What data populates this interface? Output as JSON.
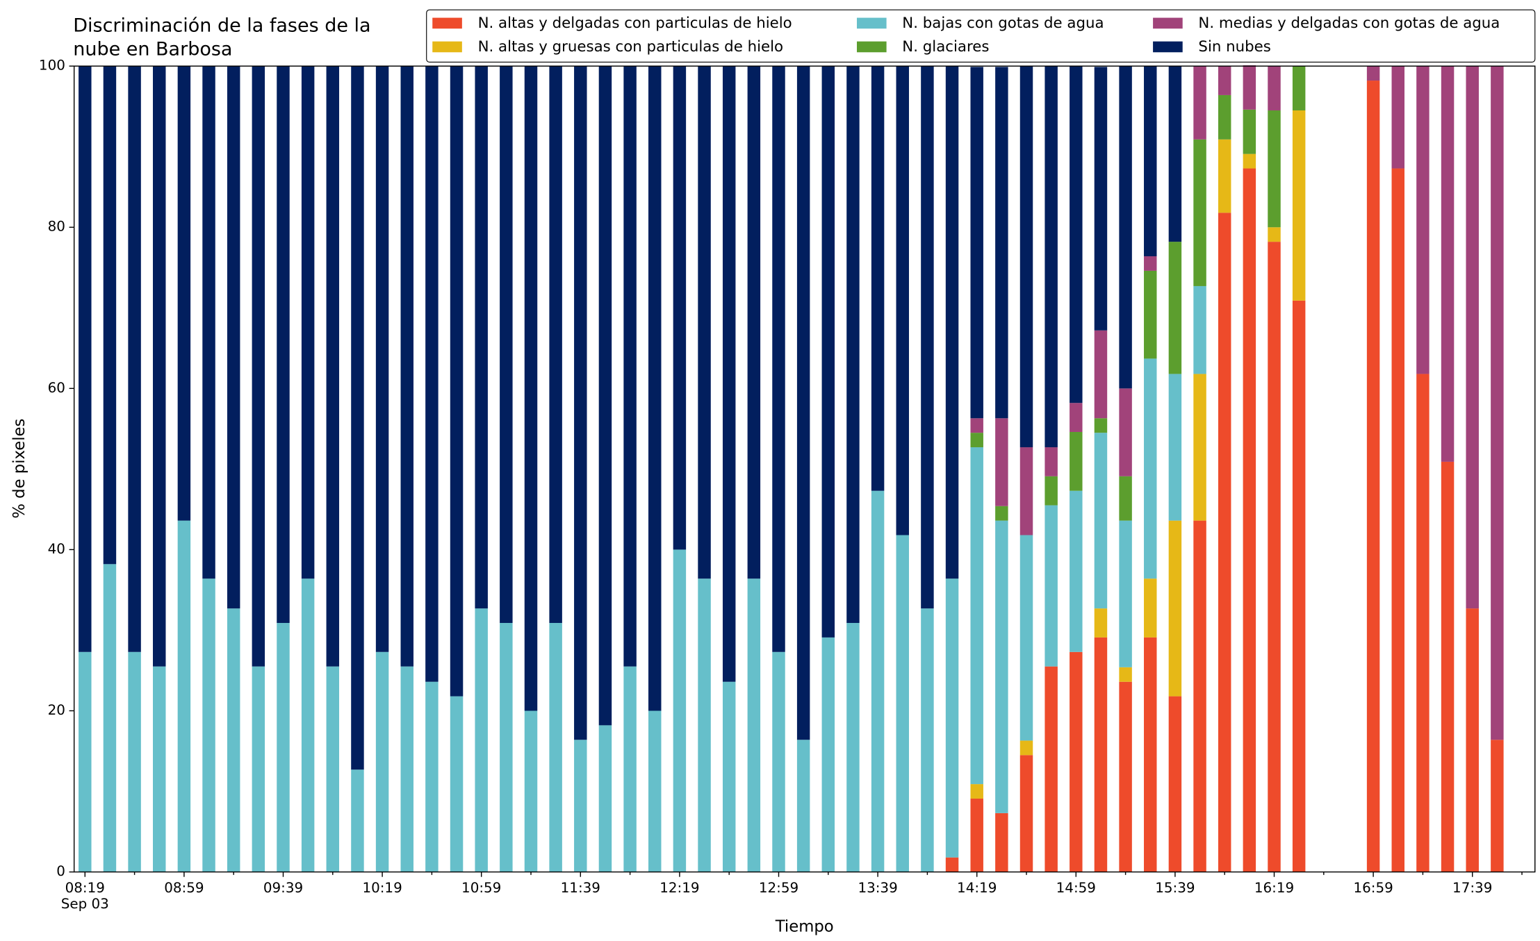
{
  "chart_data": {
    "type": "stacked_bar",
    "title": "Discriminación de la fases de la\nnube en Barbosa",
    "xlabel": "Tiempo",
    "ylabel": "% de pixeles",
    "categories": [
      "08:19",
      "08:29",
      "08:39",
      "08:49",
      "08:59",
      "09:09",
      "09:19",
      "09:29",
      "09:39",
      "09:49",
      "09:59",
      "10:09",
      "10:19",
      "10:29",
      "10:39",
      "10:49",
      "10:59",
      "11:09",
      "11:19",
      "11:29",
      "11:39",
      "11:49",
      "11:59",
      "12:09",
      "12:19",
      "12:29",
      "12:39",
      "12:49",
      "12:59",
      "13:09",
      "13:19",
      "13:29",
      "13:39",
      "13:49",
      "13:59",
      "14:09",
      "14:19",
      "14:29",
      "14:39",
      "14:49",
      "14:59",
      "15:09",
      "15:19",
      "15:29",
      "15:39",
      "15:49",
      "15:59",
      "16:09",
      "16:19",
      "16:29",
      "16:39",
      "16:49",
      "16:59",
      "17:09",
      "17:19",
      "17:29",
      "17:39",
      "17:49"
    ],
    "x_date": "Sep 03",
    "xticks": [
      "08:19",
      "08:59",
      "09:39",
      "10:19",
      "10:59",
      "11:39",
      "12:19",
      "12:59",
      "13:39",
      "14:19",
      "14:59",
      "15:39",
      "16:19",
      "16:59",
      "17:39"
    ],
    "xminorticks": [
      "08:39",
      "09:19",
      "09:59",
      "10:39",
      "11:19",
      "11:59",
      "12:39",
      "13:19",
      "13:59",
      "14:39",
      "15:19",
      "15:59",
      "16:39",
      "17:19",
      "17:59"
    ],
    "ylim": [
      0,
      100
    ],
    "yticks": [
      0,
      20,
      40,
      60,
      80,
      100
    ],
    "grid": false,
    "legend": "top",
    "series": [
      {
        "name": "N. altas y delgadas con particulas de hielo",
        "color": "#ee4b2b",
        "values": [
          0,
          0,
          0,
          0,
          0,
          0,
          0,
          0,
          0,
          0,
          0,
          0,
          0,
          0,
          0,
          0,
          0,
          0,
          0,
          0,
          0,
          0,
          0,
          0,
          0,
          0,
          0,
          0,
          0,
          0,
          0,
          0,
          0,
          0,
          0,
          1.8,
          9.1,
          7.3,
          14.5,
          25.5,
          27.3,
          29.1,
          23.6,
          29.1,
          21.8,
          43.6,
          81.8,
          87.3,
          78.2,
          70.9,
          null,
          null,
          98.2,
          87.3,
          61.8,
          50.9,
          32.7,
          16.4
        ]
      },
      {
        "name": "N. altas y gruesas con particulas de hielo",
        "color": "#e6b817",
        "values": [
          0,
          0,
          0,
          0,
          0,
          0,
          0,
          0,
          0,
          0,
          0,
          0,
          0,
          0,
          0,
          0,
          0,
          0,
          0,
          0,
          0,
          0,
          0,
          0,
          0,
          0,
          0,
          0,
          0,
          0,
          0,
          0,
          0,
          0,
          0,
          0,
          1.8,
          0,
          1.8,
          0,
          0,
          3.6,
          1.8,
          7.3,
          21.8,
          18.2,
          9.1,
          1.8,
          1.8,
          23.6,
          null,
          null,
          0,
          0,
          0,
          0,
          0,
          0
        ]
      },
      {
        "name": "N. bajas con gotas de agua",
        "color": "#66bfca",
        "values": [
          27.3,
          38.2,
          27.3,
          25.5,
          43.6,
          36.4,
          32.7,
          25.5,
          30.9,
          36.4,
          25.5,
          12.7,
          27.3,
          25.5,
          23.6,
          21.8,
          32.7,
          30.9,
          20.0,
          30.9,
          16.4,
          18.2,
          25.5,
          20.0,
          40.0,
          36.4,
          23.6,
          36.4,
          27.3,
          16.4,
          29.1,
          30.9,
          47.3,
          41.8,
          32.7,
          34.6,
          41.8,
          36.3,
          25.5,
          20.0,
          20.0,
          21.8,
          18.2,
          27.3,
          18.2,
          10.9,
          0,
          0,
          0,
          0,
          null,
          null,
          0,
          0,
          0,
          0,
          0,
          0
        ]
      },
      {
        "name": "N. glaciares",
        "color": "#5c9e2e",
        "values": [
          0,
          0,
          0,
          0,
          0,
          0,
          0,
          0,
          0,
          0,
          0,
          0,
          0,
          0,
          0,
          0,
          0,
          0,
          0,
          0,
          0,
          0,
          0,
          0,
          0,
          0,
          0,
          0,
          0,
          0,
          0,
          0,
          0,
          0,
          0,
          0,
          1.8,
          1.8,
          0,
          3.6,
          7.3,
          1.8,
          5.5,
          10.9,
          16.4,
          18.2,
          5.5,
          5.5,
          14.5,
          5.5,
          null,
          null,
          0,
          0,
          0,
          0,
          0,
          0
        ]
      },
      {
        "name": "N. medias y delgadas con gotas de agua",
        "color": "#a1437a",
        "values": [
          0,
          0,
          0,
          0,
          0,
          0,
          0,
          0,
          0,
          0,
          0,
          0,
          0,
          0,
          0,
          0,
          0,
          0,
          0,
          0,
          0,
          0,
          0,
          0,
          0,
          0,
          0,
          0,
          0,
          0,
          0,
          0,
          0,
          0,
          0,
          0,
          1.8,
          10.9,
          10.9,
          3.6,
          3.6,
          10.9,
          10.9,
          1.8,
          0,
          9.1,
          3.6,
          5.5,
          5.5,
          0,
          null,
          null,
          1.8,
          12.7,
          38.2,
          49.1,
          67.3,
          83.6
        ]
      },
      {
        "name": "Sin nubes",
        "color": "#021f5e",
        "values": [
          72.7,
          61.8,
          72.7,
          74.5,
          56.4,
          63.6,
          67.3,
          74.5,
          69.1,
          63.6,
          74.5,
          87.3,
          72.7,
          74.5,
          76.4,
          78.2,
          67.3,
          69.1,
          80.0,
          69.1,
          83.6,
          81.8,
          74.5,
          80.0,
          60.0,
          63.6,
          76.4,
          63.6,
          72.7,
          83.6,
          70.9,
          69.1,
          52.7,
          58.2,
          67.3,
          63.6,
          43.6,
          43.6,
          47.3,
          47.3,
          41.8,
          32.7,
          40.0,
          23.6,
          21.8,
          0,
          0,
          0,
          0,
          0,
          null,
          null,
          0,
          0,
          0,
          0,
          0,
          0
        ]
      }
    ]
  }
}
